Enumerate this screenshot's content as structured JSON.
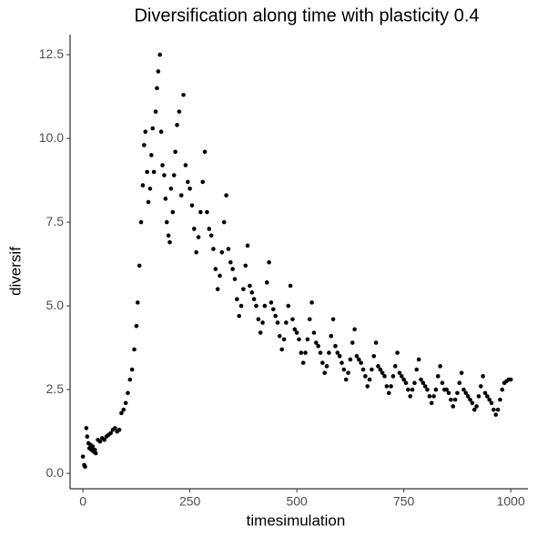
{
  "chart_data": {
    "type": "scatter",
    "title": "Diversification along time with plasticity 0.4",
    "xlabel": "timesimulation",
    "ylabel": "diversif",
    "color": "#000000",
    "xlim": [
      -30,
      1040
    ],
    "ylim": [
      -0.46,
      13.1
    ],
    "xticks": [
      0,
      250,
      500,
      750,
      1000
    ],
    "yticks": [
      {
        "value": 0,
        "label": "0.0"
      },
      2.5,
      {
        "value": 5,
        "label": "5.0"
      },
      7.5,
      {
        "value": 10,
        "label": "10.0"
      },
      12.5
    ],
    "x": [
      0,
      3,
      5,
      8,
      10,
      13,
      15,
      18,
      20,
      23,
      25,
      28,
      30,
      35,
      40,
      45,
      50,
      55,
      60,
      65,
      70,
      75,
      80,
      85,
      90,
      95,
      100,
      105,
      110,
      115,
      120,
      125,
      128,
      132,
      136,
      140,
      143,
      146,
      150,
      153,
      157,
      160,
      163,
      166,
      170,
      173,
      176,
      180,
      183,
      186,
      190,
      193,
      196,
      200,
      203,
      206,
      210,
      213,
      216,
      220,
      225,
      230,
      235,
      240,
      245,
      250,
      255,
      260,
      265,
      270,
      275,
      280,
      285,
      290,
      295,
      300,
      305,
      310,
      315,
      320,
      325,
      330,
      335,
      340,
      345,
      350,
      355,
      360,
      365,
      370,
      375,
      380,
      385,
      390,
      395,
      400,
      405,
      410,
      415,
      420,
      425,
      430,
      435,
      440,
      445,
      450,
      455,
      460,
      465,
      470,
      475,
      480,
      485,
      490,
      495,
      500,
      505,
      510,
      515,
      520,
      525,
      530,
      535,
      540,
      545,
      550,
      555,
      560,
      565,
      570,
      575,
      580,
      585,
      590,
      595,
      600,
      605,
      610,
      615,
      620,
      625,
      630,
      635,
      640,
      645,
      650,
      655,
      660,
      665,
      670,
      675,
      680,
      685,
      690,
      695,
      700,
      705,
      710,
      715,
      720,
      725,
      730,
      735,
      740,
      745,
      750,
      755,
      760,
      765,
      770,
      775,
      780,
      785,
      790,
      795,
      800,
      805,
      810,
      815,
      820,
      825,
      830,
      835,
      840,
      845,
      850,
      855,
      860,
      865,
      870,
      875,
      880,
      885,
      890,
      895,
      900,
      905,
      910,
      915,
      920,
      925,
      930,
      935,
      940,
      945,
      950,
      955,
      960,
      965,
      970,
      975,
      980,
      985,
      990,
      995,
      1000
    ],
    "values": [
      0.5,
      0.25,
      0.2,
      1.35,
      1.1,
      0.9,
      0.75,
      0.85,
      0.7,
      0.8,
      0.65,
      0.7,
      0.6,
      1.0,
      0.95,
      1.05,
      1.0,
      1.1,
      1.15,
      1.2,
      1.3,
      1.35,
      1.25,
      1.3,
      1.8,
      1.9,
      2.1,
      2.4,
      2.8,
      3.1,
      3.7,
      4.4,
      5.1,
      6.2,
      7.5,
      8.6,
      9.8,
      10.2,
      9.0,
      8.1,
      8.5,
      9.5,
      10.3,
      9.0,
      10.8,
      11.5,
      12.0,
      12.5,
      10.2,
      9.2,
      8.9,
      8.2,
      7.5,
      7.1,
      6.9,
      8.5,
      7.8,
      8.9,
      9.6,
      10.4,
      10.8,
      8.3,
      11.3,
      9.2,
      8.7,
      8.5,
      8.0,
      7.3,
      6.6,
      7.05,
      7.8,
      8.7,
      9.6,
      7.8,
      7.3,
      7.1,
      6.7,
      6.1,
      5.5,
      5.9,
      6.6,
      7.5,
      8.3,
      6.7,
      6.3,
      6.1,
      5.8,
      5.2,
      4.7,
      5.0,
      5.5,
      6.2,
      6.8,
      5.6,
      5.4,
      5.2,
      5.0,
      4.6,
      4.2,
      4.5,
      5.0,
      5.7,
      6.3,
      5.1,
      4.9,
      4.7,
      4.5,
      4.1,
      3.7,
      4.0,
      4.5,
      5.0,
      5.6,
      4.6,
      4.3,
      4.2,
      4.0,
      3.6,
      3.3,
      3.6,
      4.0,
      4.6,
      5.1,
      4.2,
      3.9,
      3.8,
      3.6,
      3.3,
      3.0,
      3.2,
      3.6,
      4.1,
      4.6,
      3.8,
      3.6,
      3.5,
      3.3,
      3.1,
      2.8,
      3.0,
      3.4,
      3.9,
      4.3,
      3.5,
      3.4,
      3.3,
      3.1,
      2.9,
      2.6,
      2.8,
      3.1,
      3.5,
      3.9,
      3.2,
      3.1,
      3.0,
      2.9,
      2.6,
      2.4,
      2.6,
      2.9,
      3.2,
      3.6,
      3.0,
      2.9,
      2.8,
      2.7,
      2.5,
      2.3,
      2.5,
      2.7,
      3.1,
      3.4,
      2.8,
      2.7,
      2.6,
      2.5,
      2.3,
      2.1,
      2.3,
      2.5,
      2.9,
      3.2,
      2.7,
      2.5,
      2.5,
      2.4,
      2.2,
      2.0,
      2.2,
      2.4,
      2.7,
      3.0,
      2.5,
      2.4,
      2.3,
      2.2,
      2.1,
      1.9,
      2.0,
      2.3,
      2.6,
      2.9,
      2.4,
      2.3,
      2.2,
      2.1,
      1.9,
      1.75,
      1.9,
      2.2,
      2.5,
      2.7,
      2.75,
      2.8,
      2.8
    ]
  }
}
